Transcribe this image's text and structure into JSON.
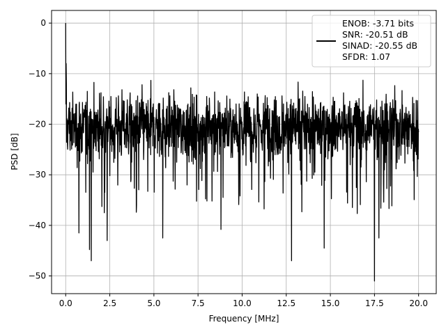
{
  "chart_data": {
    "type": "line",
    "title": "",
    "xlabel": "Frequency [MHz]",
    "ylabel": "PSD [dB]",
    "xlim": [
      -0.8,
      21.0
    ],
    "ylim": [
      -53.5,
      2.5
    ],
    "xticks": [
      0.0,
      2.5,
      5.0,
      7.5,
      10.0,
      12.5,
      15.0,
      17.5,
      20.0
    ],
    "xtick_labels": [
      "0.0",
      "2.5",
      "5.0",
      "7.5",
      "10.0",
      "12.5",
      "15.0",
      "17.5",
      "20.0"
    ],
    "yticks": [
      0,
      -10,
      -20,
      -30,
      -40,
      -50
    ],
    "ytick_labels": [
      "0",
      "−10",
      "−20",
      "−30",
      "−40",
      "−50"
    ],
    "grid": true,
    "legend_position": "top-right",
    "line_color": "#000000",
    "series": [
      {
        "values_note_removed": true,
        "x_range": [
          0.0,
          20.0
        ],
        "noise_floor_mean_db": -20.5,
        "noise_band_db": [
          -28,
          -11
        ],
        "peak": {
          "x": 0.0,
          "y": 0.0
        },
        "deep_nulls": [
          {
            "x": 0.75,
            "y": -41.5
          },
          {
            "x": 1.35,
            "y": -44.8
          },
          {
            "x": 1.45,
            "y": -47.0
          },
          {
            "x": 2.35,
            "y": -43.0
          },
          {
            "x": 5.5,
            "y": -42.5
          },
          {
            "x": 8.8,
            "y": -40.8
          },
          {
            "x": 12.8,
            "y": -47.0
          },
          {
            "x": 14.65,
            "y": -44.5
          },
          {
            "x": 17.5,
            "y": -51.0
          },
          {
            "x": 17.75,
            "y": -42.5
          }
        ]
      }
    ]
  },
  "legend": {
    "entries": [
      "ENOB: -3.71 bits",
      "SNR: -20.51 dB",
      "SINAD: -20.55 dB",
      "SFDR: 1.07"
    ]
  }
}
